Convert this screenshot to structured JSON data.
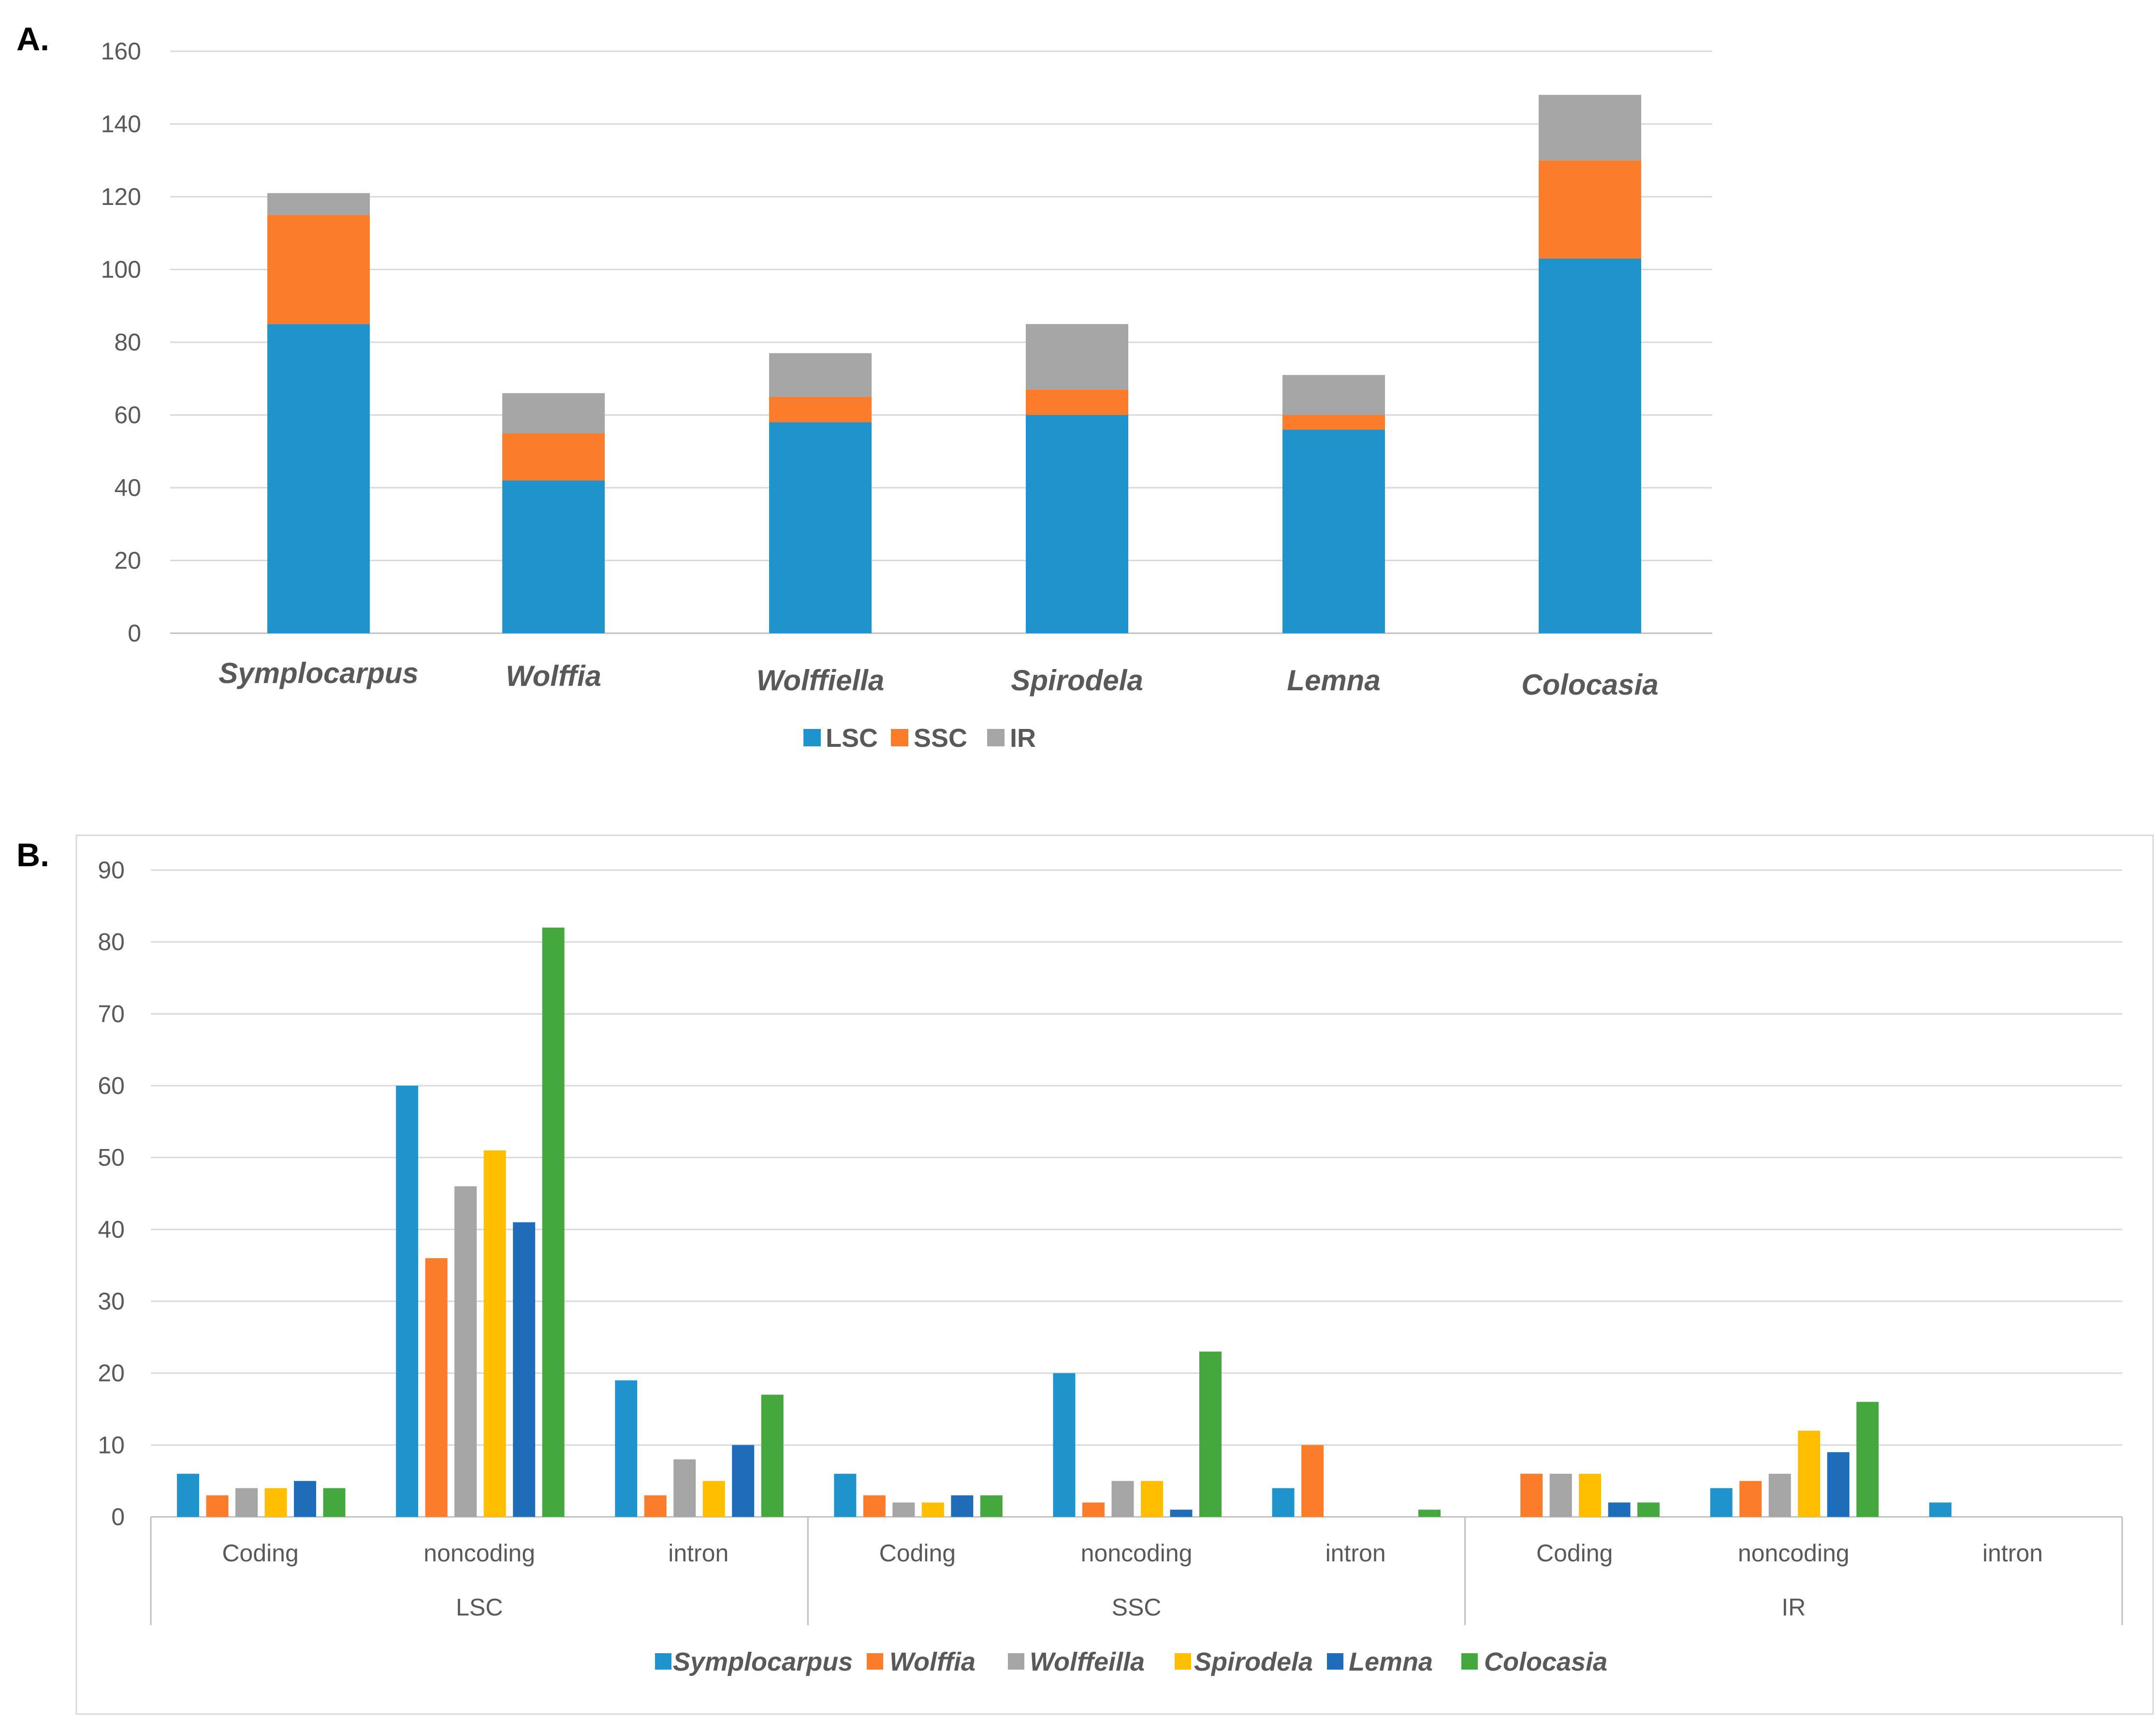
{
  "colors": {
    "LSC": "#1f94cc",
    "SSC": "#fb7c2b",
    "IR": "#a5a5a5",
    "Symplocarpus": "#1f94cc",
    "Wolffia": "#fb7c2b",
    "Wolffeilla": "#a5a5a5",
    "Spirodela": "#ffbf00",
    "Lemna": "#1f6cb8",
    "Colocasia": "#45a83f"
  },
  "chart_data": [
    {
      "panel_label": "A.",
      "type": "bar",
      "stacked": true,
      "categories": [
        "Symplocarpus",
        "Wolffia",
        "Wolffiella",
        "Spirodela",
        "Lemna",
        "Colocasia"
      ],
      "series": [
        {
          "name": "LSC",
          "values": [
            85,
            42,
            58,
            60,
            56,
            103
          ]
        },
        {
          "name": "SSC",
          "values": [
            30,
            13,
            7,
            7,
            4,
            27
          ]
        },
        {
          "name": "IR",
          "values": [
            6,
            11,
            12,
            18,
            11,
            18
          ]
        }
      ],
      "yticks": [
        "0",
        "20",
        "40",
        "60",
        "80",
        "100",
        "120",
        "140",
        "160"
      ],
      "ylim": [
        0,
        160
      ],
      "grid": true,
      "legend": "bottom"
    },
    {
      "panel_label": "B.",
      "type": "bar",
      "stacked": false,
      "categories": [
        "Coding",
        "noncoding",
        "intron",
        "Coding",
        "noncoding",
        "intron",
        "Coding",
        "noncoding",
        "intron"
      ],
      "groups": [
        "LSC",
        "SSC",
        "IR"
      ],
      "series": [
        {
          "name": "Symplocarpus",
          "values": [
            6,
            60,
            19,
            6,
            20,
            4,
            0,
            4,
            2
          ]
        },
        {
          "name": "Wolffia",
          "values": [
            3,
            36,
            3,
            3,
            2,
            10,
            6,
            5,
            0
          ]
        },
        {
          "name": "Wolffeilla",
          "values": [
            4,
            46,
            8,
            2,
            5,
            0,
            6,
            6,
            0
          ]
        },
        {
          "name": "Spirodela",
          "values": [
            4,
            51,
            5,
            2,
            5,
            0,
            6,
            12,
            0
          ]
        },
        {
          "name": "Lemna",
          "values": [
            5,
            41,
            10,
            3,
            1,
            0,
            2,
            9,
            0
          ]
        },
        {
          "name": "Colocasia",
          "values": [
            4,
            82,
            17,
            3,
            23,
            1,
            2,
            16,
            0
          ]
        }
      ],
      "yticks": [
        "0",
        "10",
        "20",
        "30",
        "40",
        "50",
        "60",
        "70",
        "80",
        "90"
      ],
      "ylim": [
        0,
        90
      ],
      "grid": true,
      "legend": "bottom"
    }
  ]
}
